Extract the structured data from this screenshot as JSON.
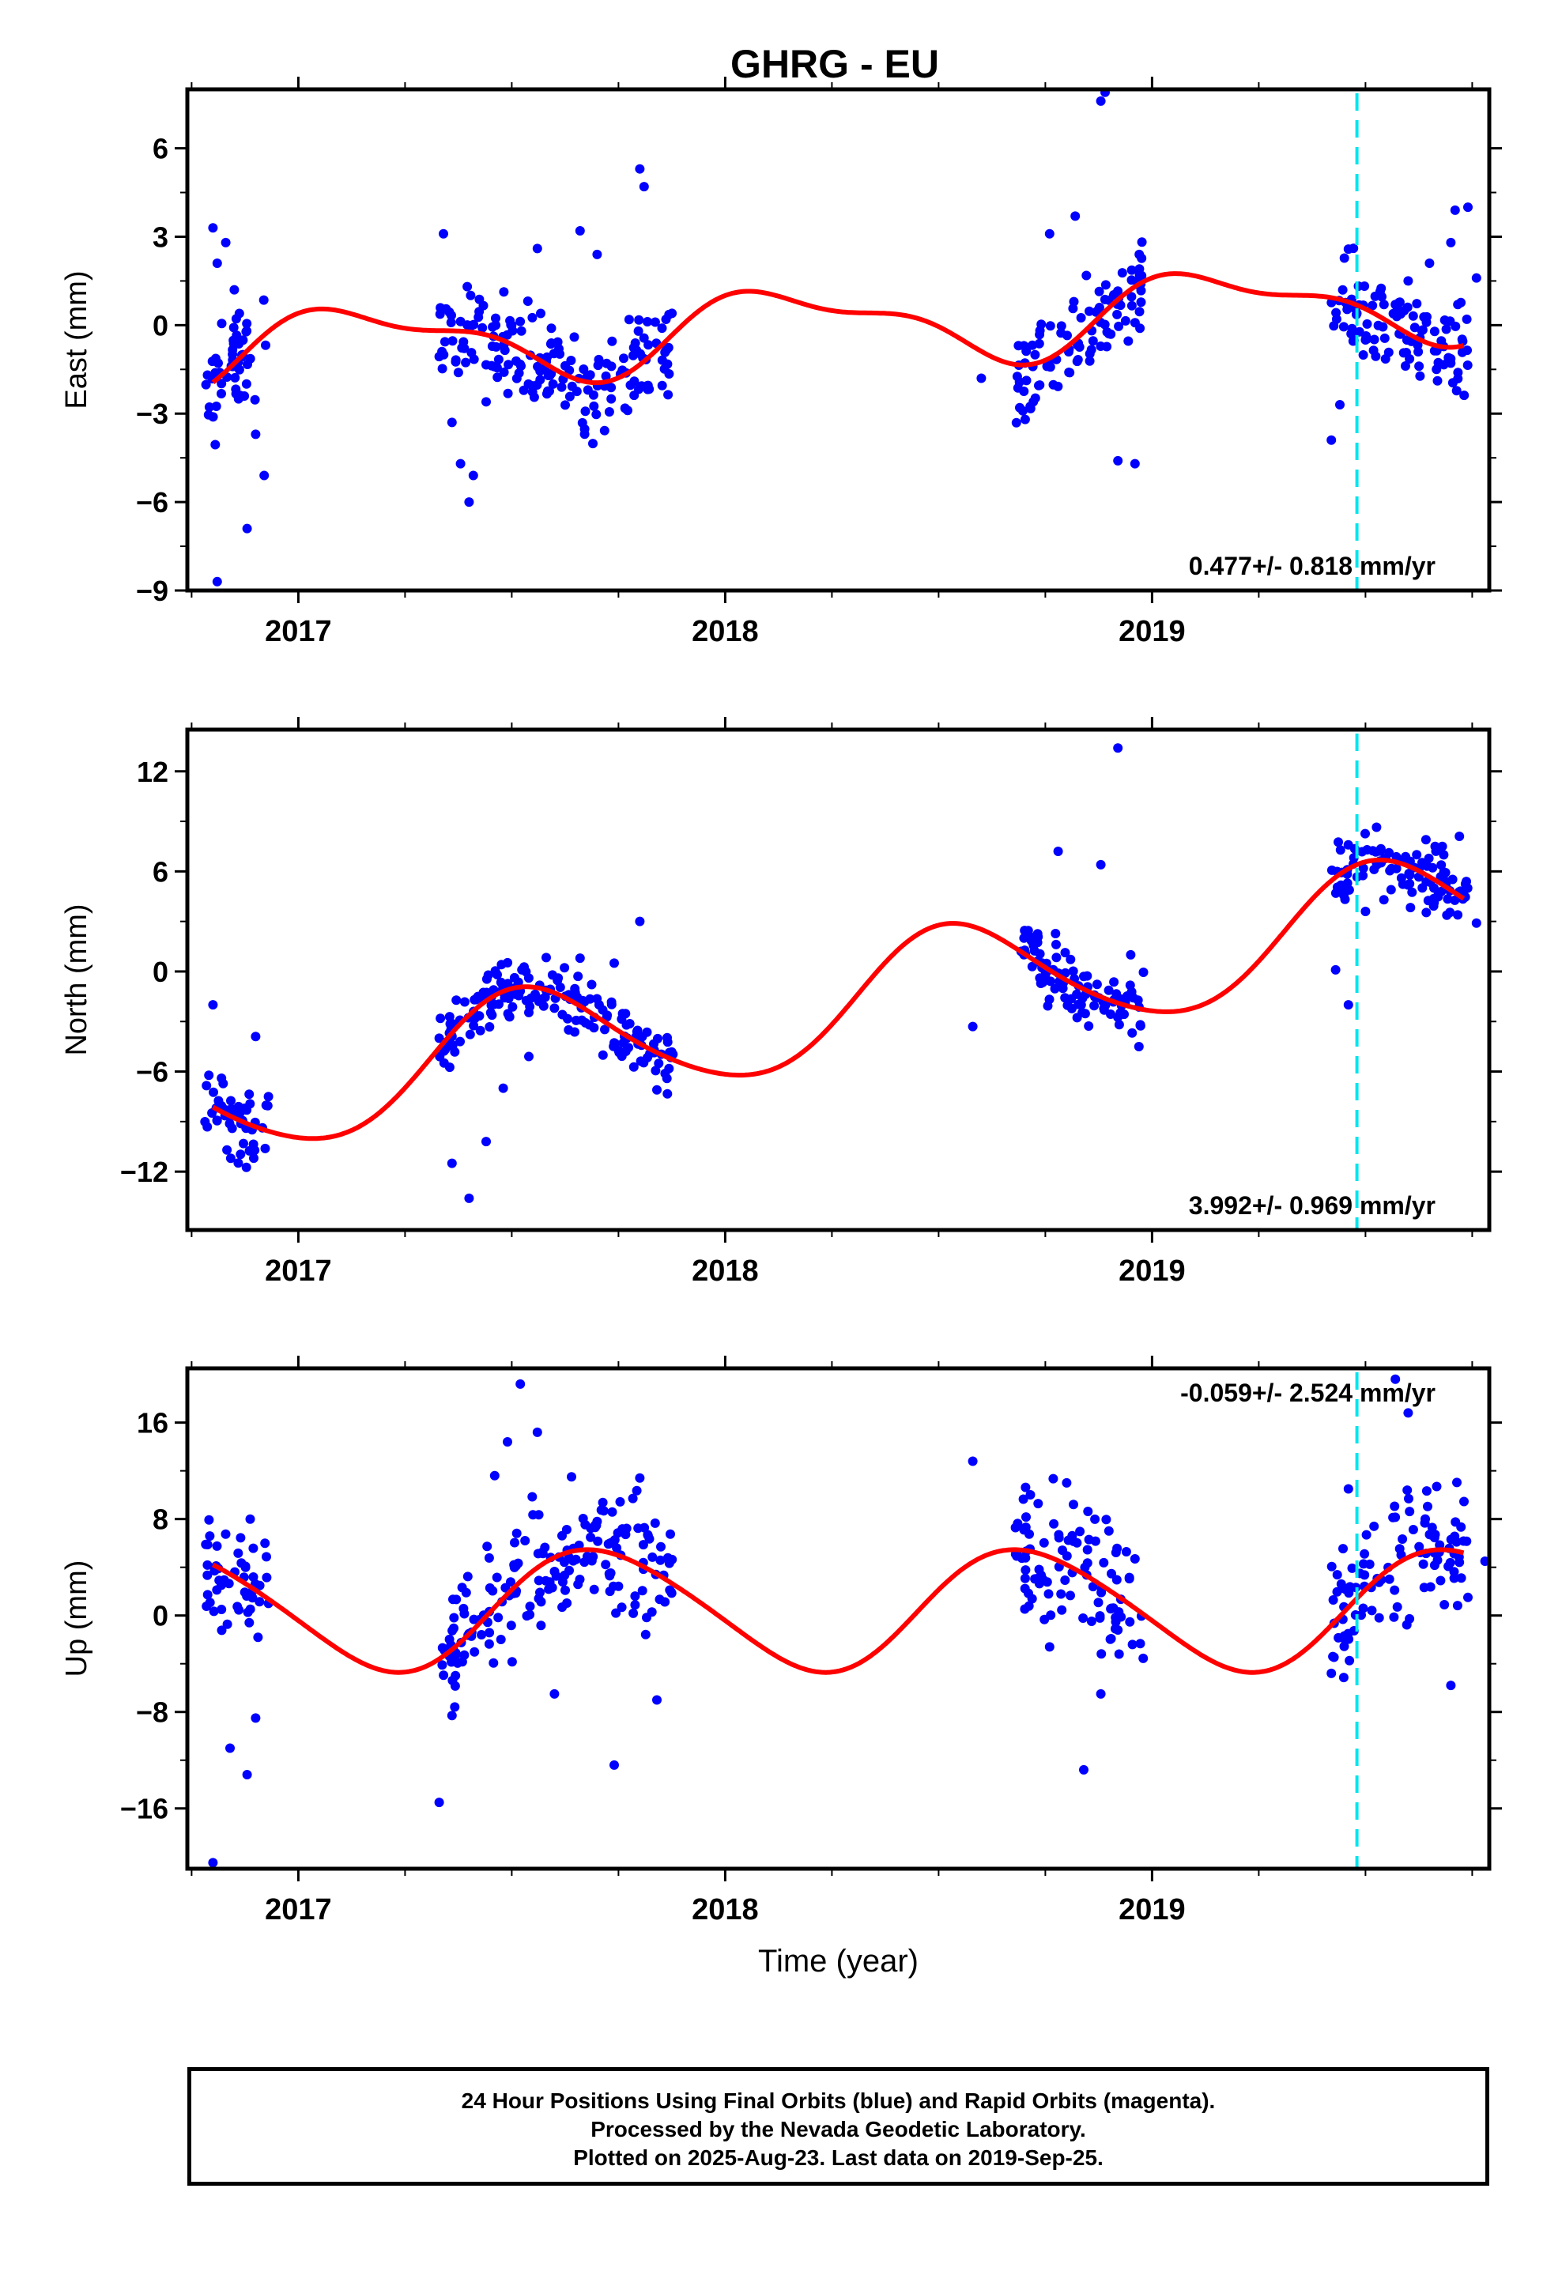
{
  "title": "GHRG - EU",
  "colors": {
    "final_orbits": "#0000ff",
    "model_fit": "#ff0000",
    "event_marker": "#00e5ee",
    "axes": "#000000"
  },
  "chart_data": [
    {
      "type": "scatter",
      "ylabel": "East (mm)",
      "xlim": [
        2016.74,
        2019.79
      ],
      "ylim": [
        -9,
        8
      ],
      "yticks": [
        -9,
        -6,
        -3,
        0,
        3,
        6
      ],
      "yticklabels": [
        "−9",
        "−6",
        "−3",
        "0",
        "3",
        "6"
      ],
      "xticks": [
        2017,
        2018,
        2019
      ],
      "xticklabels": [
        "2017",
        "2018",
        "2019"
      ],
      "rate_label": "0.477+/- 0.818 mm/yr",
      "rate_position": "bottom-right",
      "event_year": 2019.48,
      "model": {
        "mean": 0.0,
        "trend": 0.6,
        "offset_at_event": 0.0,
        "a1": 1.2,
        "p1": 0.6,
        "a2": 0.5,
        "p2": 1.8
      },
      "series": [
        {
          "label": "Final Orbits",
          "x": [
            2016.8,
            2016.81,
            2016.83,
            2016.85,
            2016.88,
            2016.9,
            2016.92,
            2016.81,
            2016.86,
            2016.87,
            2017.34,
            2017.36,
            2017.38,
            2017.4,
            2017.41,
            2017.44,
            2017.5,
            2017.56,
            2017.66,
            2017.7,
            2017.8,
            2017.81,
            2018.6,
            2018.69,
            2018.76,
            2018.82,
            2018.88,
            2018.89,
            2018.92,
            2018.96,
            2018.97,
            2019.42,
            2019.44,
            2019.5,
            2019.57,
            2019.6,
            2019.65,
            2019.7,
            2019.71,
            2019.74,
            2019.76
          ],
          "y": [
            3.3,
            2.1,
            2.8,
            1.2,
            -6.9,
            -3.7,
            -5.1,
            -8.7,
            -2.5,
            -1.0,
            3.1,
            -3.3,
            -4.7,
            -6.0,
            -5.1,
            -2.6,
            0.0,
            2.6,
            3.2,
            2.4,
            5.3,
            4.7,
            -1.8,
            -2.8,
            3.1,
            3.7,
            7.6,
            7.9,
            -4.6,
            -4.7,
            2.4,
            -3.9,
            -2.7,
            -0.5,
            0.7,
            1.5,
            2.1,
            2.8,
            3.9,
            4.0,
            1.6
          ]
        }
      ]
    },
    {
      "type": "scatter",
      "ylabel": "North (mm)",
      "xlim": [
        2016.74,
        2019.79
      ],
      "ylim": [
        -15.5,
        14.5
      ],
      "yticks": [
        -12,
        -6,
        0,
        6,
        12
      ],
      "yticklabels": [
        "−12",
        "−6",
        "0",
        "6",
        "12"
      ],
      "xticks": [
        2017,
        2018,
        2019
      ],
      "xticklabels": [
        "2017",
        "2018",
        "2019"
      ],
      "rate_label": "3.992+/- 0.969 mm/yr",
      "rate_position": "bottom-right",
      "event_year": 2019.48,
      "model": {
        "mean": -2.0,
        "trend": 3.8,
        "offset_at_event": 0.0,
        "a1": 3.6,
        "p1": 4.5,
        "a2": 0.4,
        "p2": 2.0
      },
      "series": [
        {
          "label": "Final Orbits",
          "x": [
            2016.8,
            2016.82,
            2016.86,
            2016.9,
            2016.93,
            2017.33,
            2017.36,
            2017.4,
            2017.44,
            2017.48,
            2017.54,
            2017.6,
            2017.66,
            2017.74,
            2017.8,
            2017.84,
            2018.58,
            2018.7,
            2018.78,
            2018.84,
            2018.88,
            2018.92,
            2018.95,
            2019.43,
            2019.46,
            2019.5,
            2019.56,
            2019.62,
            2019.68,
            2019.72,
            2019.76
          ],
          "y": [
            -2.0,
            -6.4,
            -8.1,
            -3.9,
            -7.5,
            -4.0,
            -11.5,
            -13.6,
            -10.2,
            -7.0,
            -5.1,
            -2.2,
            0.8,
            0.5,
            3.0,
            -7.1,
            -3.3,
            2.0,
            7.2,
            -0.3,
            6.4,
            13.4,
            1.0,
            0.1,
            -2.0,
            3.6,
            4.9,
            7.0,
            7.5,
            8.1,
            2.9
          ]
        }
      ]
    },
    {
      "type": "scatter",
      "ylabel": "Up (mm)",
      "xlaxis": "Time (year)",
      "xlabel": "Time (year)",
      "xlim": [
        2016.74,
        2019.79
      ],
      "ylim": [
        -21,
        20.5
      ],
      "yticks": [
        -16,
        -8,
        0,
        8,
        16
      ],
      "yticklabels": [
        "−16",
        "−8",
        "0",
        "8",
        "16"
      ],
      "xticks": [
        2017,
        2018,
        2019
      ],
      "xticklabels": [
        "2017",
        "2018",
        "2019"
      ],
      "rate_label": "-0.059+/- 2.524 mm/yr",
      "rate_position": "top-right",
      "event_year": 2019.48,
      "model": {
        "mean": 0.5,
        "trend": 0.0,
        "offset_at_event": 0.0,
        "a1": 5.0,
        "p1": 3.4,
        "a2": 0.5,
        "p2": 0.8
      },
      "series": [
        {
          "label": "Final Orbits",
          "x": [
            2016.8,
            2016.82,
            2016.84,
            2016.88,
            2016.9,
            2016.93,
            2017.33,
            2017.36,
            2017.4,
            2017.46,
            2017.49,
            2017.52,
            2017.56,
            2017.6,
            2017.64,
            2017.7,
            2017.74,
            2017.8,
            2017.84,
            2018.58,
            2018.7,
            2018.76,
            2018.8,
            2018.84,
            2018.88,
            2018.92,
            2018.96,
            2019.42,
            2019.46,
            2019.52,
            2019.57,
            2019.6,
            2019.64,
            2019.7,
            2019.74,
            2019.78
          ],
          "y": [
            -20.5,
            0.5,
            -11.0,
            -13.2,
            -8.5,
            1.0,
            -15.5,
            -8.3,
            -1.5,
            11.6,
            14.4,
            19.2,
            15.2,
            -6.5,
            11.5,
            7.8,
            -12.4,
            11.4,
            -7.0,
            12.8,
            7.1,
            -2.6,
            11.0,
            -12.8,
            -6.5,
            -1.2,
            4.7,
            -4.8,
            10.5,
            7.4,
            19.6,
            16.8,
            8.0,
            -5.8,
            1.5,
            4.5
          ]
        }
      ]
    }
  ],
  "footer": {
    "line1": "24 Hour Positions Using Final Orbits (blue) and Rapid Orbits (magenta).",
    "line2": "Processed by the Nevada Geodetic Laboratory.",
    "line3": "Plotted on 2025-Aug-23. Last data on 2019-Sep-25."
  }
}
